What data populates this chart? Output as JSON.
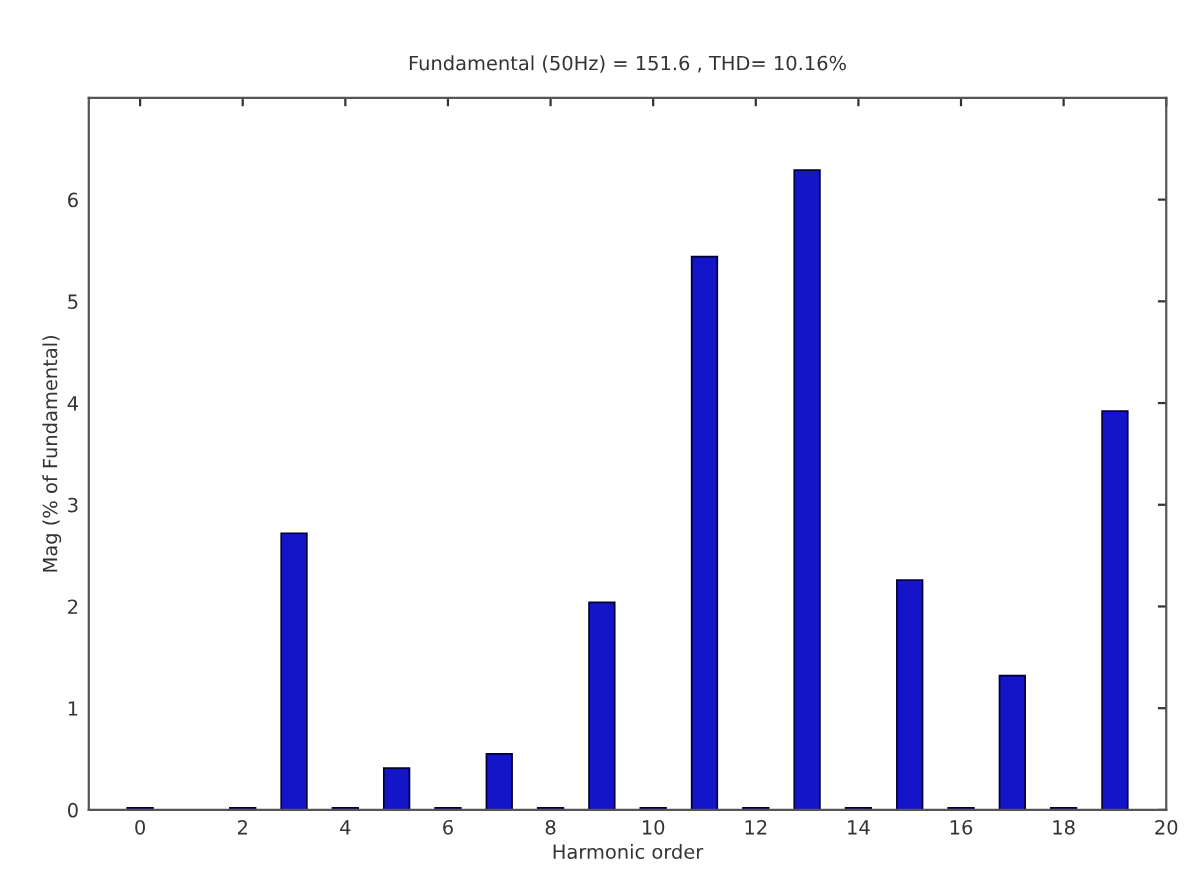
{
  "chart_data": {
    "type": "bar",
    "title": "Fundamental (50Hz) = 151.6 , THD= 10.16%",
    "xlabel": "Harmonic order",
    "ylabel": "Mag (% of Fundamental)",
    "x": [
      0,
      1,
      2,
      3,
      4,
      5,
      6,
      7,
      8,
      9,
      10,
      11,
      12,
      13,
      14,
      15,
      16,
      17,
      18,
      19
    ],
    "values": [
      0.02,
      null,
      0.02,
      2.72,
      0.02,
      0.41,
      0.02,
      0.55,
      0.02,
      2.04,
      0.02,
      5.44,
      0.02,
      6.29,
      0.02,
      2.26,
      0.02,
      1.32,
      0.02,
      3.92
    ],
    "color": "#1414c8",
    "xlim": [
      -1,
      20
    ],
    "xticks": [
      0,
      2,
      4,
      6,
      8,
      10,
      12,
      14,
      16,
      18,
      20
    ],
    "ylim": [
      0,
      7
    ],
    "yticks": [
      0,
      1,
      2,
      3,
      4,
      5,
      6
    ],
    "grid": false,
    "legend": false
  }
}
